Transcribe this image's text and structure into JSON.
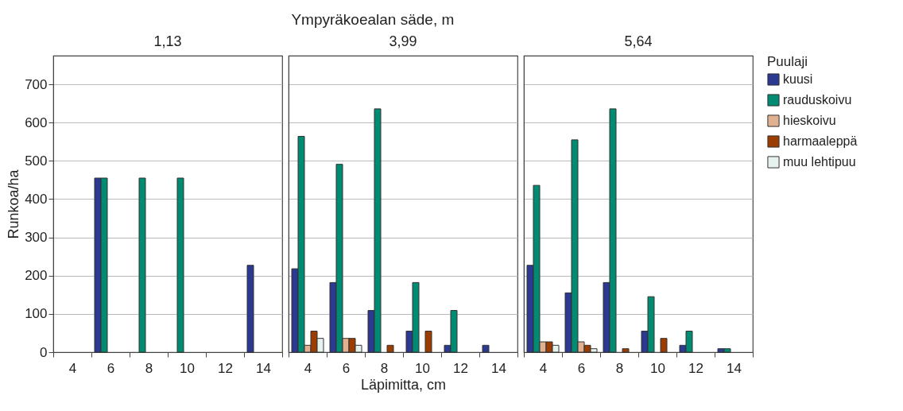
{
  "chart_data": [
    {
      "type": "bar",
      "title": "1,13",
      "ylabel": "Runkoa/ha",
      "categories": [
        "4",
        "6",
        "8",
        "10",
        "12",
        "14"
      ],
      "ylim": [
        0,
        775
      ],
      "yticks": [
        0,
        100,
        200,
        300,
        400,
        500,
        600,
        700
      ],
      "grid": "y",
      "series": [
        {
          "color": "#2b3990",
          "values": [
            null,
            455,
            null,
            null,
            null,
            227
          ]
        },
        {
          "color": "#008b72",
          "values": [
            null,
            455,
            455,
            455,
            null,
            null
          ]
        },
        {
          "color": "#e0b090",
          "values": [
            null,
            null,
            null,
            null,
            null,
            null
          ]
        },
        {
          "color": "#9b3d00",
          "values": [
            null,
            null,
            null,
            null,
            null,
            null
          ]
        },
        {
          "color": "#e6f2ee",
          "values": [
            null,
            null,
            null,
            null,
            null,
            null
          ]
        }
      ]
    },
    {
      "type": "bar",
      "title": "3,99",
      "xlabel": "Läpimitta, cm",
      "annotations": [
        "Ympyräkoealan säde, m"
      ],
      "categories": [
        "4",
        "6",
        "8",
        "10",
        "12",
        "14"
      ],
      "ylim": [
        0,
        775
      ],
      "grid": "y",
      "tick_labels": "x",
      "series": [
        {
          "color": "#2b3990",
          "values": [
            218,
            182,
            109,
            55,
            18,
            18
          ]
        },
        {
          "color": "#008b72",
          "values": [
            564,
            491,
            636,
            182,
            109,
            null
          ]
        },
        {
          "color": "#e0b090",
          "values": [
            18,
            36,
            null,
            null,
            null,
            null
          ]
        },
        {
          "color": "#9b3d00",
          "values": [
            55,
            36,
            18,
            55,
            null,
            null
          ]
        },
        {
          "color": "#e6f2ee",
          "values": [
            36,
            18,
            null,
            null,
            null,
            null
          ]
        }
      ]
    },
    {
      "type": "bar",
      "title": "5,64",
      "legend_title": "Puulaji",
      "categories": [
        "4",
        "6",
        "8",
        "10",
        "12",
        "14"
      ],
      "ylim": [
        0,
        775
      ],
      "grid": "y",
      "tick_labels": "x",
      "legend": "right",
      "series": [
        {
          "name": "kuusi",
          "color": "#2b3990",
          "values": [
            227,
            155,
            182,
            55,
            18,
            9
          ]
        },
        {
          "name": "rauduskoivu",
          "color": "#008b72",
          "values": [
            436,
            555,
            636,
            145,
            55,
            9
          ]
        },
        {
          "name": "hieskoivu",
          "color": "#e0b090",
          "values": [
            27,
            27,
            null,
            null,
            null,
            null
          ]
        },
        {
          "name": "harmaaleppä",
          "color": "#9b3d00",
          "values": [
            27,
            18,
            9,
            36,
            null,
            null
          ]
        },
        {
          "name": "muu lehtipuu",
          "color": "#e6f2ee",
          "values": [
            18,
            9,
            null,
            null,
            null,
            null
          ]
        }
      ]
    }
  ]
}
